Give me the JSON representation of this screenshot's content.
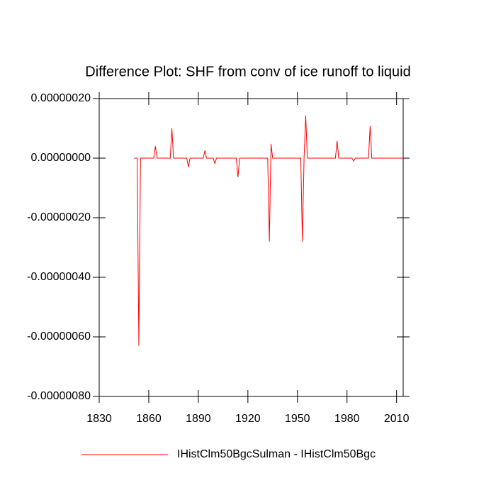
{
  "chart_data": {
    "type": "line",
    "title": "Difference Plot: SHF from conv of ice runoff to liquid",
    "x": [
      1851,
      1852,
      1853,
      1854,
      1855,
      1863,
      1864,
      1865,
      1873,
      1874,
      1875,
      1883,
      1884,
      1885,
      1893,
      1894,
      1895,
      1899,
      1900,
      1901,
      1913,
      1914,
      1915,
      1932,
      1933,
      1934,
      1935,
      1952,
      1953,
      1954,
      1955,
      1956,
      1973,
      1974,
      1975,
      1983,
      1984,
      1985,
      1993,
      1994,
      1995,
      2014
    ],
    "series": [
      {
        "name": "IHistClm50BgcSulman - IHistClm50Bgc",
        "color": "#ff0000",
        "values": [
          0,
          0,
          0,
          -6.3e-07,
          0,
          0,
          4e-08,
          0,
          0,
          1e-07,
          0,
          0,
          -3e-08,
          0,
          0,
          2.6e-08,
          0,
          0,
          -1.8e-08,
          0,
          0,
          -6.4e-08,
          0,
          0,
          -2.8e-07,
          4.8e-08,
          0,
          0,
          -2.8e-07,
          0,
          1.43e-07,
          0,
          0,
          5.8e-08,
          0,
          0,
          -1e-08,
          0,
          0,
          1.08e-07,
          0,
          0
        ]
      }
    ],
    "xlim": [
      1830,
      2014
    ],
    "ylim": [
      -8e-07,
      2e-07
    ],
    "xticks": [
      1830,
      1860,
      1890,
      1920,
      1950,
      1980,
      2010
    ],
    "yticks": [
      {
        "value": 2e-07,
        "label": "0.00000020"
      },
      {
        "value": 0,
        "label": "0.00000000"
      },
      {
        "value": -2e-07,
        "label": "-0.00000020"
      },
      {
        "value": -4e-07,
        "label": "-0.00000040"
      },
      {
        "value": -6e-07,
        "label": "-0.00000060"
      },
      {
        "value": -8e-07,
        "label": "-0.00000080"
      }
    ]
  }
}
